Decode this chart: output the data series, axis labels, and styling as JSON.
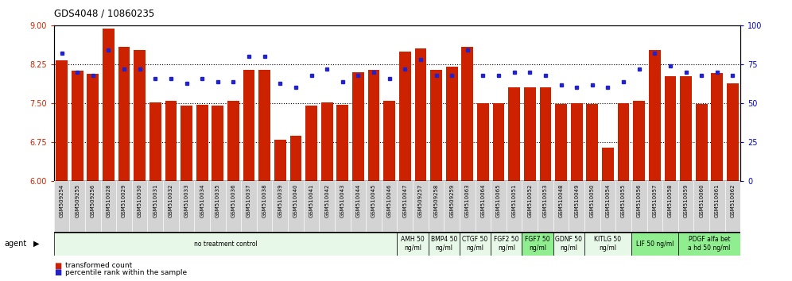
{
  "title": "GDS4048 / 10860235",
  "bar_color": "#cc2200",
  "dot_color": "#2222cc",
  "ylim_left": [
    6,
    9
  ],
  "ylim_right": [
    0,
    100
  ],
  "yticks_left": [
    6,
    6.75,
    7.5,
    8.25,
    9
  ],
  "yticks_right": [
    0,
    25,
    50,
    75,
    100
  ],
  "hlines": [
    6.75,
    7.5,
    8.25
  ],
  "categories": [
    "GSM509254",
    "GSM509255",
    "GSM509256",
    "GSM510028",
    "GSM510029",
    "GSM510030",
    "GSM510031",
    "GSM510032",
    "GSM510033",
    "GSM510034",
    "GSM510035",
    "GSM510036",
    "GSM510037",
    "GSM510038",
    "GSM510039",
    "GSM510040",
    "GSM510041",
    "GSM510042",
    "GSM510043",
    "GSM510044",
    "GSM510045",
    "GSM510046",
    "GSM510047",
    "GSM509257",
    "GSM509258",
    "GSM509259",
    "GSM510063",
    "GSM510064",
    "GSM510065",
    "GSM510051",
    "GSM510052",
    "GSM510053",
    "GSM510048",
    "GSM510049",
    "GSM510050",
    "GSM510054",
    "GSM510055",
    "GSM510056",
    "GSM510057",
    "GSM510058",
    "GSM510059",
    "GSM510060",
    "GSM510061",
    "GSM510062"
  ],
  "bar_values": [
    8.32,
    8.12,
    8.07,
    8.93,
    8.58,
    8.52,
    7.52,
    7.55,
    7.45,
    7.47,
    7.45,
    7.55,
    8.15,
    8.15,
    6.8,
    6.87,
    7.45,
    7.52,
    7.47,
    8.1,
    8.15,
    7.55,
    8.5,
    8.55,
    8.15,
    8.2,
    8.58,
    7.5,
    7.5,
    7.8,
    7.8,
    7.8,
    7.48,
    7.5,
    7.48,
    6.65,
    7.5,
    7.55,
    8.52,
    8.02,
    8.02,
    7.48,
    8.08,
    7.88
  ],
  "dot_values": [
    82,
    70,
    68,
    84,
    72,
    72,
    66,
    66,
    63,
    66,
    64,
    64,
    80,
    80,
    63,
    60,
    68,
    72,
    64,
    68,
    70,
    66,
    72,
    78,
    68,
    68,
    84,
    68,
    68,
    70,
    70,
    68,
    62,
    60,
    62,
    60,
    64,
    72,
    82,
    74,
    70,
    68,
    70,
    68
  ],
  "agent_groups": [
    {
      "label": "no treatment control",
      "start": 0,
      "end": 22,
      "color": "#e8f8e8"
    },
    {
      "label": "AMH 50\nng/ml",
      "start": 22,
      "end": 24,
      "color": "#e8f8e8"
    },
    {
      "label": "BMP4 50\nng/ml",
      "start": 24,
      "end": 26,
      "color": "#e8f8e8"
    },
    {
      "label": "CTGF 50\nng/ml",
      "start": 26,
      "end": 28,
      "color": "#e8f8e8"
    },
    {
      "label": "FGF2 50\nng/ml",
      "start": 28,
      "end": 30,
      "color": "#e8f8e8"
    },
    {
      "label": "FGF7 50\nng/ml",
      "start": 30,
      "end": 32,
      "color": "#90ee90"
    },
    {
      "label": "GDNF 50\nng/ml",
      "start": 32,
      "end": 34,
      "color": "#e8f8e8"
    },
    {
      "label": "KITLG 50\nng/ml",
      "start": 34,
      "end": 37,
      "color": "#e8f8e8"
    },
    {
      "label": "LIF 50 ng/ml",
      "start": 37,
      "end": 40,
      "color": "#90ee90"
    },
    {
      "label": "PDGF alfa bet\na hd 50 ng/ml",
      "start": 40,
      "end": 44,
      "color": "#90ee90"
    }
  ],
  "legend_labels": [
    "transformed count",
    "percentile rank within the sample"
  ],
  "legend_colors": [
    "#cc2200",
    "#2222cc"
  ],
  "bg_color": "#ffffff",
  "plot_bg": "#ffffff",
  "tick_color_left": "#cc2200",
  "tick_color_right": "#0000cc",
  "xtick_bg": "#d0d0d0",
  "agent_row_bg": "#c8e8c8"
}
